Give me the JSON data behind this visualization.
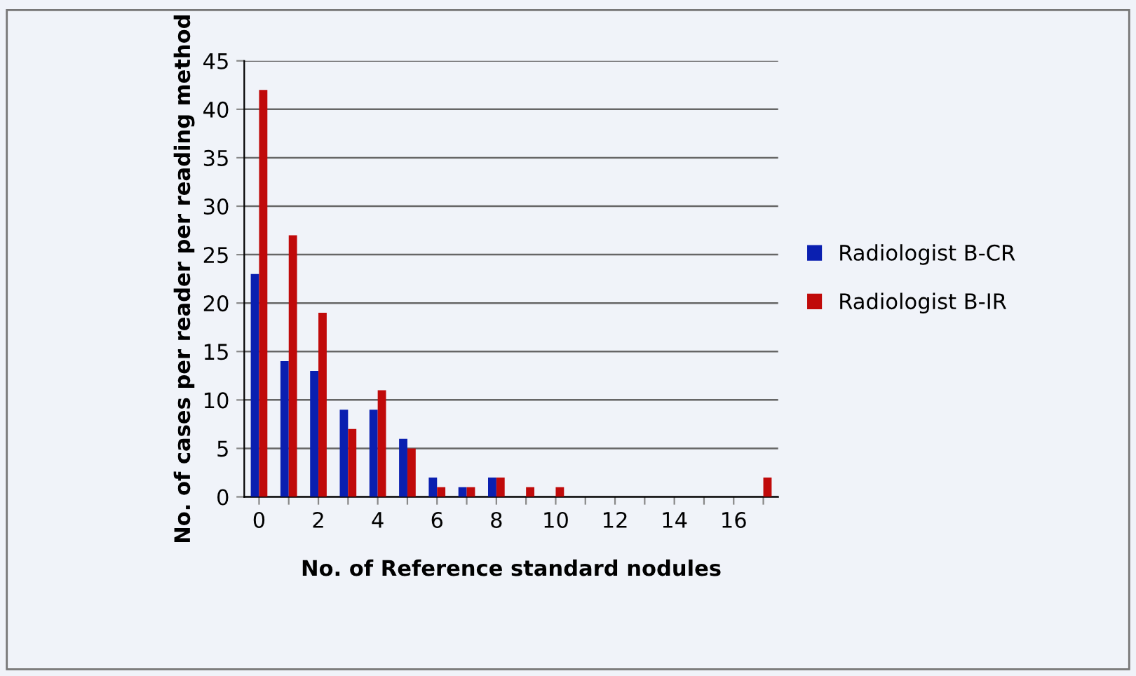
{
  "chart_data": {
    "type": "bar",
    "xlabel": "No. of Reference standard nodules",
    "ylabel": "No. of cases per reader per reading method",
    "categories": [
      "0",
      null,
      "2",
      null,
      "4",
      null,
      "6",
      null,
      "8",
      null,
      "10",
      null,
      "12",
      null,
      "14",
      null,
      "16",
      null
    ],
    "series": [
      {
        "name": "Radiologist B-CR",
        "color": "#0a1fb0",
        "values": [
          23,
          14,
          13,
          9,
          9,
          6,
          2,
          1,
          2,
          0,
          0,
          0,
          0,
          0,
          0,
          0,
          0,
          0
        ]
      },
      {
        "name": "Radiologist B-IR",
        "color": "#c00a0a",
        "values": [
          42,
          27,
          19,
          7,
          11,
          5,
          1,
          1,
          2,
          1,
          1,
          0,
          0,
          0,
          0,
          0,
          0,
          2
        ]
      }
    ],
    "ylim": [
      0,
      45
    ],
    "yticks": [
      0,
      5,
      10,
      15,
      20,
      25,
      30,
      35,
      40,
      45
    ],
    "grid": "y",
    "legend": "right"
  }
}
